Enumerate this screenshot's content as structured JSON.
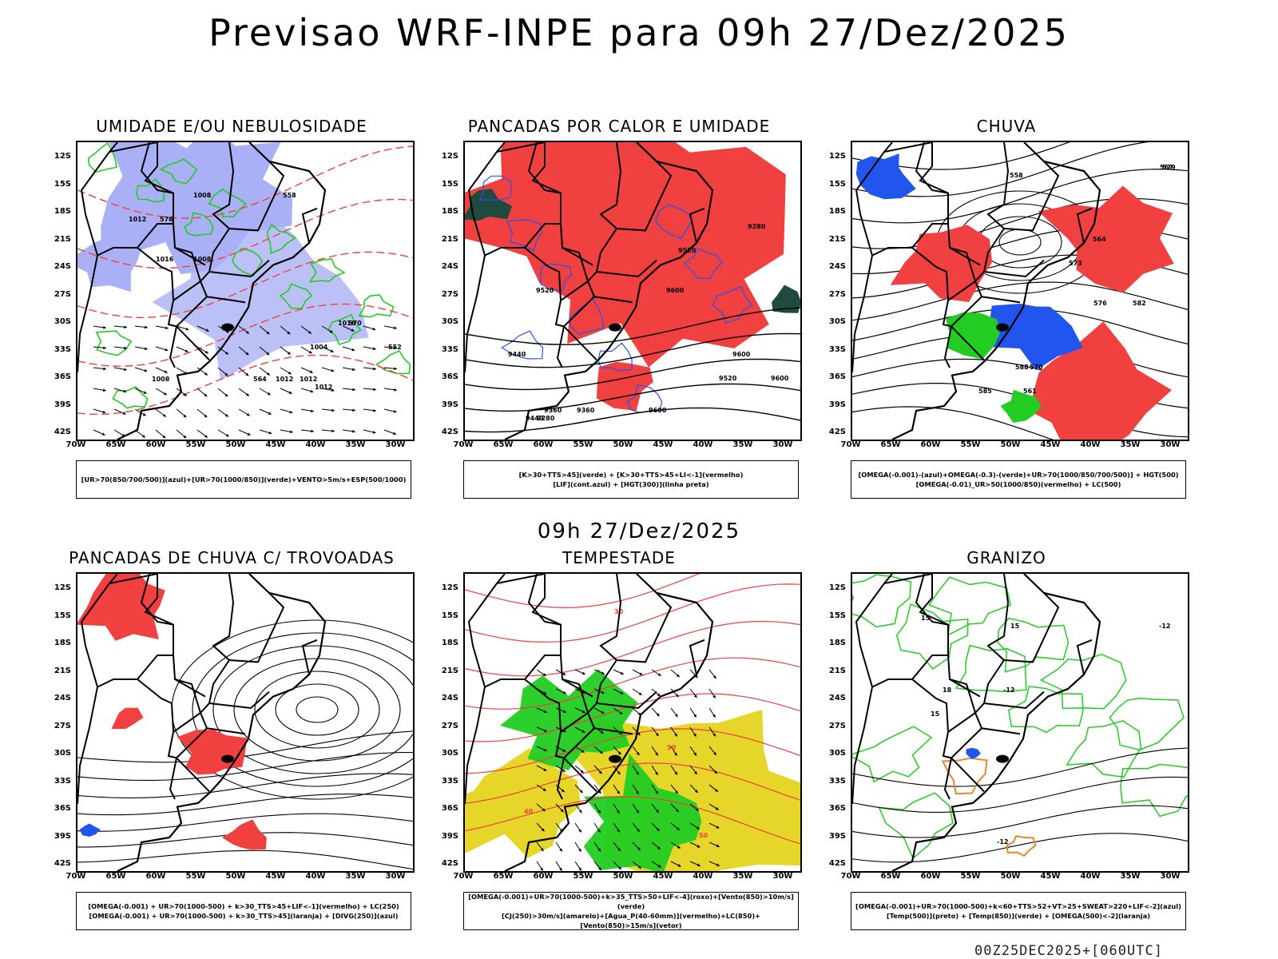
{
  "header": {
    "title": "Previsao WRF-INPE  para 09h 27/Dez/2025",
    "mid_time": "09h 27/Dez/2025",
    "run_info": "00Z25DEC2025+[060UTC]"
  },
  "axes": {
    "lat_labels": [
      "12S",
      "15S",
      "18S",
      "21S",
      "24S",
      "27S",
      "30S",
      "33S",
      "36S",
      "39S",
      "42S"
    ],
    "lon_labels": [
      "70W",
      "65W",
      "60W",
      "55W",
      "50W",
      "45W",
      "40W",
      "35W",
      "30W"
    ]
  },
  "colors": {
    "humid_blue": "#aab0f5",
    "green": "#22cc22",
    "red": "#f04040",
    "blue": "#2255ee",
    "yellow": "#e6d62a",
    "dark_green": "#1f4a3f",
    "contour_black": "#000000"
  },
  "panels": [
    {
      "title": "UMIDADE E/OU NEBULOSIDADE",
      "legend_lines": [
        "[UR>70(850/700/500)](azul)+[UR>70(1000/850)](verde)+VENTO>5m/s+ESP(500/1000)"
      ],
      "contour_labels": [
        "1012",
        "1012",
        "1012",
        "1008",
        "1008",
        "1016",
        "1004",
        "1016",
        "1012",
        "1008",
        "576",
        "570",
        "564",
        "558",
        "552"
      ]
    },
    {
      "title": "PANCADAS POR CALOR E UMIDADE",
      "legend_lines": [
        "[K>30+TTS>45](verde) + [K>30+TTS>45+LI<-1](vermelho)",
        "[LIF](cont.azul) + [HGT(300)](linha preta)"
      ],
      "contour_labels": [
        "9600",
        "9600",
        "9520",
        "9600",
        "9600",
        "9520",
        "9440",
        "9360",
        "9280",
        "9520",
        "9440",
        "9360",
        "9280"
      ]
    },
    {
      "title": "CHUVA",
      "legend_lines": [
        "[OMEGA(-0.001)-(azul)+OMEGA(-0.3)-(verde)+UR>70(1000/850/700/500)] + HGT(500)",
        "[OMEGA(-0.01)_UR>50(1000/850)(vermelho) + LC(500)"
      ],
      "contour_labels": [
        "588",
        "585",
        "582",
        "579",
        "576",
        "573",
        "570",
        "567",
        "564",
        "561",
        "558"
      ]
    },
    {
      "title": "PANCADAS DE CHUVA C/ TROVOADAS",
      "legend_lines": [
        "[OMEGA(-0.001) + UR>70(1000-500) + k>30_TTS>45+LIF<-1](vermelho) + LC(250)",
        "[OMEGA(-0.001) + UR>70(1000-500) + k>30_TTS>45](laranja) + [DIVG(250)](azul)"
      ],
      "contour_labels": []
    },
    {
      "title": "TEMPESTADE",
      "legend_lines": [
        "[OMEGA(-0.001)+UR>70(1000-500)+k>35_TTS>50+LIF<-4](roxo)+[Vento(850)>10m/s](verde)",
        "[CJ(250)>30m/s](amarelo)+[Agua_P(40-60mm)](vermelho)+LC(850)+[Vento(850)>15m/s](vetor)"
      ],
      "contour_labels": [
        "40",
        "50",
        "50",
        "30"
      ]
    },
    {
      "title": "GRANIZO",
      "legend_lines": [
        "[OMEGA(-0.001)+UR>70(1000-500)+k<60+TTS>52+VT>25+SWEAT>220+LIF<-2](azul)",
        "[Temp(500)](preto) + [Temp(850)](verde) + [OMEGA(500)<-2](laranja)"
      ],
      "contour_labels": [
        "-12",
        "-12",
        "-12",
        "15",
        "15",
        "15",
        "18"
      ]
    }
  ]
}
